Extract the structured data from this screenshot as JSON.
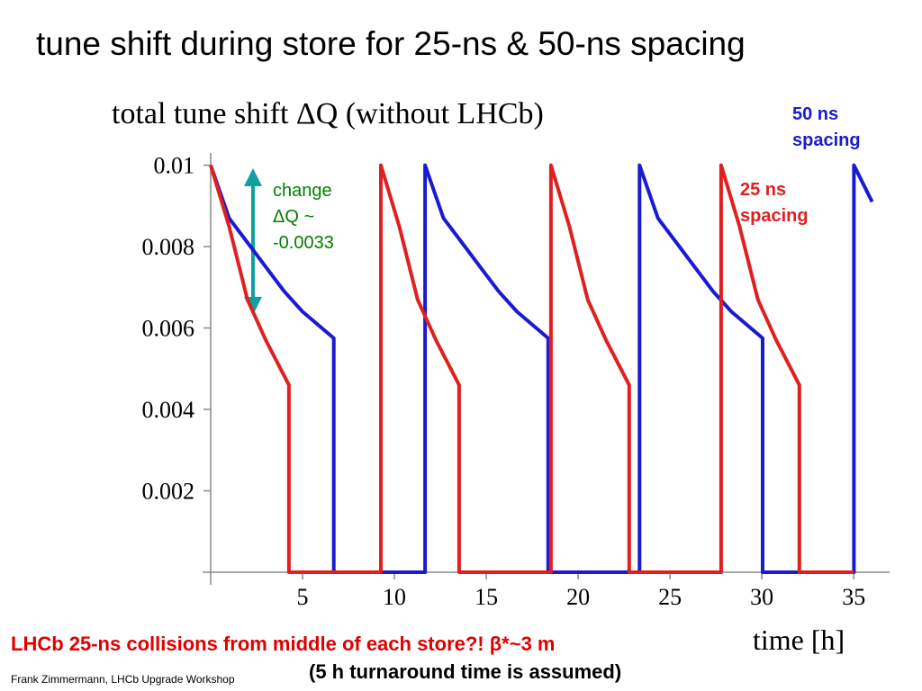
{
  "title": "tune shift during store for 25-ns & 50-ns spacing",
  "chart_data": {
    "type": "line",
    "title": "total tune shift ΔQ (without LHCb)",
    "x_label": "time [h]",
    "annotation": "change ΔQ ~ -0.0033",
    "xlim": [
      0,
      37
    ],
    "xticks": [
      5,
      10,
      15,
      20,
      25,
      30,
      35
    ],
    "ylim": [
      0,
      0.0103
    ],
    "yticks": [
      0.002,
      0.004,
      0.006,
      0.008,
      0.01
    ],
    "series": [
      {
        "name": "50 ns spacing",
        "color": "#1a1ad0",
        "x": [
          0,
          1,
          2,
          3,
          4,
          5,
          6.7,
          6.7,
          11.67,
          11.67,
          12.67,
          13.67,
          14.67,
          15.67,
          16.67,
          18.37,
          18.37,
          23.34,
          23.34,
          24.34,
          25.34,
          26.34,
          27.34,
          28.34,
          30.04,
          30.04,
          35.01,
          35.01,
          36
        ],
        "values": [
          0.01,
          0.0087,
          0.0081,
          0.0075,
          0.0069,
          0.0064,
          0.00575,
          0,
          0,
          0.01,
          0.0087,
          0.0081,
          0.0075,
          0.0069,
          0.0064,
          0.00575,
          0,
          0,
          0.01,
          0.0087,
          0.0081,
          0.0075,
          0.0069,
          0.0064,
          0.00575,
          0,
          0,
          0.01,
          0.0091
        ]
      },
      {
        "name": "25 ns spacing",
        "color": "#e02020",
        "x": [
          0,
          1,
          2,
          3,
          4.26,
          4.26,
          9.26,
          9.26,
          10.26,
          11.26,
          12.26,
          13.52,
          13.52,
          18.52,
          18.52,
          19.52,
          20.52,
          21.52,
          22.78,
          22.78,
          27.78,
          27.78,
          28.78,
          29.78,
          30.78,
          32.04,
          32.04,
          35
        ],
        "values": [
          0.01,
          0.0085,
          0.0067,
          0.0057,
          0.0046,
          0,
          0,
          0.01,
          0.0085,
          0.0067,
          0.0057,
          0.0046,
          0,
          0,
          0.01,
          0.0085,
          0.0067,
          0.0057,
          0.0046,
          0,
          0,
          0.01,
          0.0085,
          0.0067,
          0.0057,
          0.0046,
          0,
          0
        ]
      }
    ]
  },
  "footer": {
    "note": "LHCb 25-ns collisions from middle of each store?! β*~3 m",
    "subnote": "(5 h turnaround time is assumed)",
    "author": "Frank Zimmermann, LHCb Upgrade Workshop"
  }
}
